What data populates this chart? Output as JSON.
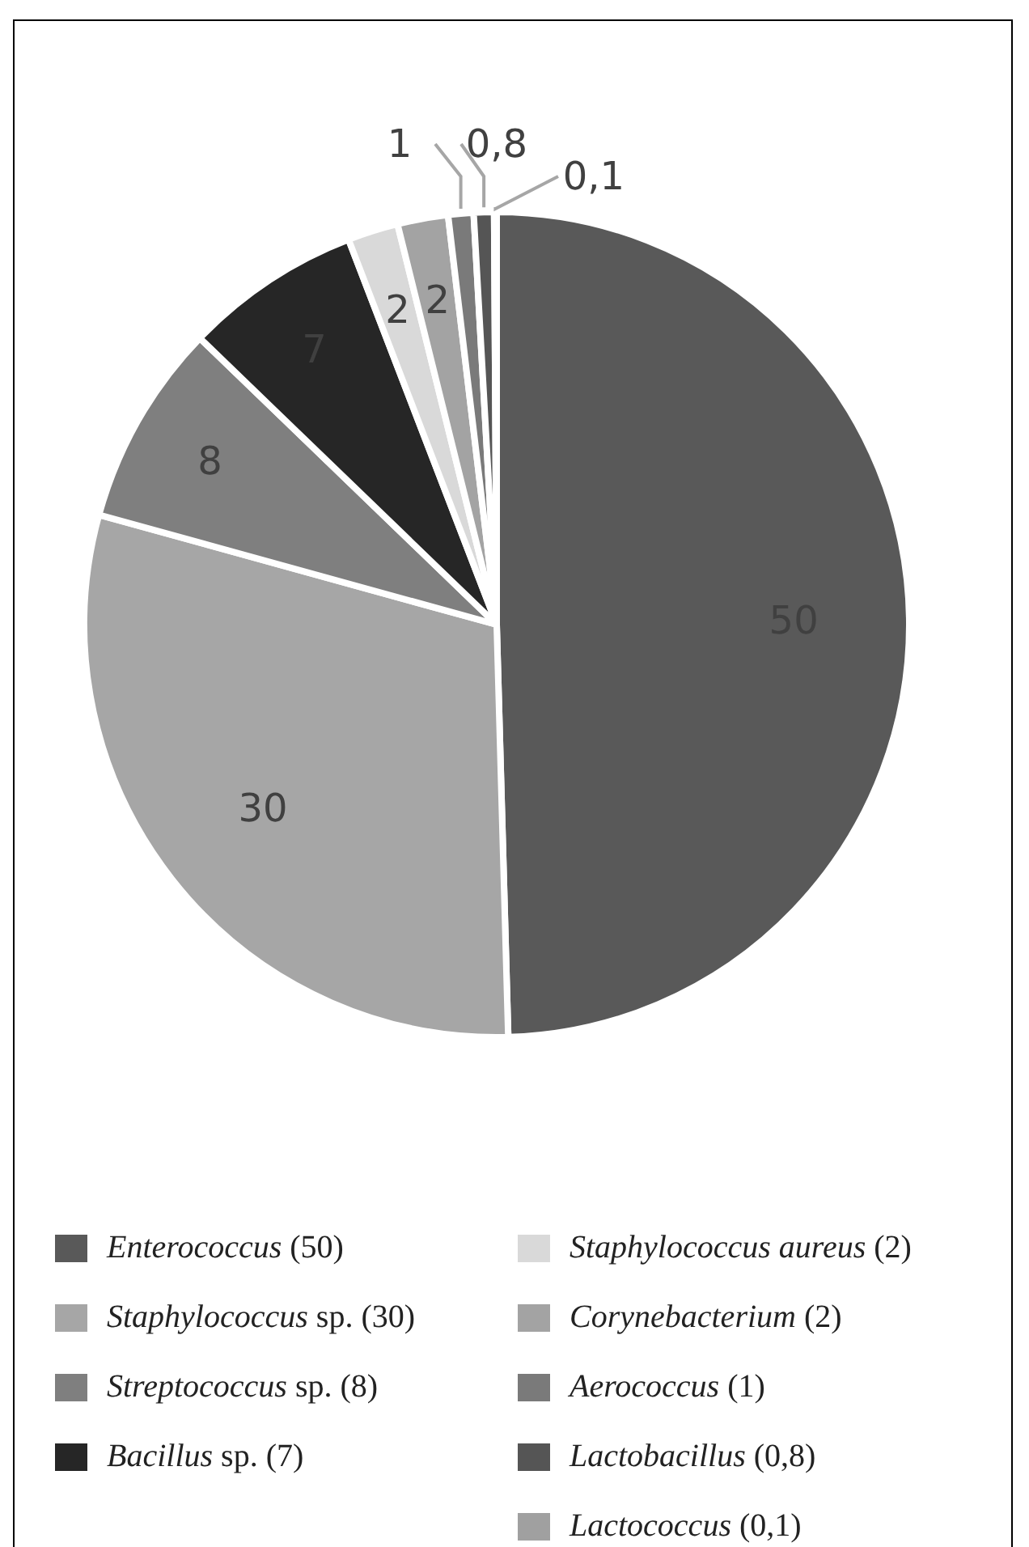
{
  "chart_data": {
    "type": "pie",
    "categories": [
      "Enterococcus (50)",
      "Staphylococcus sp. (30)",
      "Streptococcus sp. (8)",
      "Bacillus sp. (7)",
      "Staphylococcus aureus (2)",
      "Corynebacterium (2)",
      "Aerococcus (1)",
      "Lactobacillus (0,8)",
      "Lactococcus (0,1)"
    ],
    "values": [
      50,
      30,
      8,
      7,
      2,
      2,
      1,
      0.8,
      0.1
    ],
    "value_labels": [
      "50",
      "30",
      "8",
      "7",
      "2",
      "2",
      "1",
      "0,8",
      "0,1"
    ],
    "colors": [
      "#595959",
      "#a6a6a6",
      "#7f7f7f",
      "#262626",
      "#d9d9d9",
      "#a3a3a3",
      "#7a7a7a",
      "#555555",
      "#a0a0a0"
    ],
    "legend": "bottom"
  }
}
